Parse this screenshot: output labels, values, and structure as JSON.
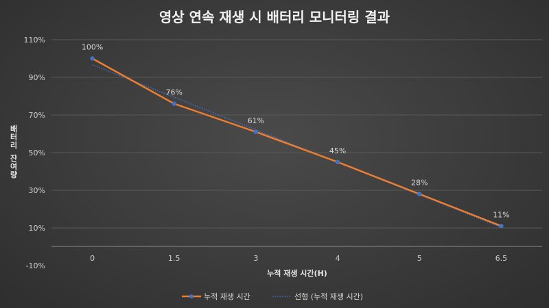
{
  "chart_data": {
    "type": "line",
    "title": "영상 연속 재생 시 배터리 모니터링 결과",
    "xlabel": "누적 재생 시간(H)",
    "ylabel": "배터리 잔여량",
    "categories": [
      "0",
      "1.5",
      "3",
      "4",
      "5",
      "6.5"
    ],
    "series": [
      {
        "name": "누적 재생 시간",
        "values": [
          100,
          76,
          61,
          45,
          28,
          11
        ],
        "data_labels": [
          "100%",
          "76%",
          "61%",
          "45%",
          "28%",
          "11%"
        ],
        "color": "#ed7d31",
        "marker_color": "#4472c4"
      },
      {
        "name": "선형 (누적 재생 시간)",
        "trendline": "linear",
        "color": "#4472c4"
      }
    ],
    "ylim": [
      -10,
      110
    ],
    "yticks": [
      -10,
      10,
      30,
      50,
      70,
      90,
      110
    ],
    "ytick_labels": [
      "-10%",
      "10%",
      "30%",
      "50%",
      "70%",
      "90%",
      "110%"
    ],
    "grid": true,
    "legend": "bottom"
  }
}
